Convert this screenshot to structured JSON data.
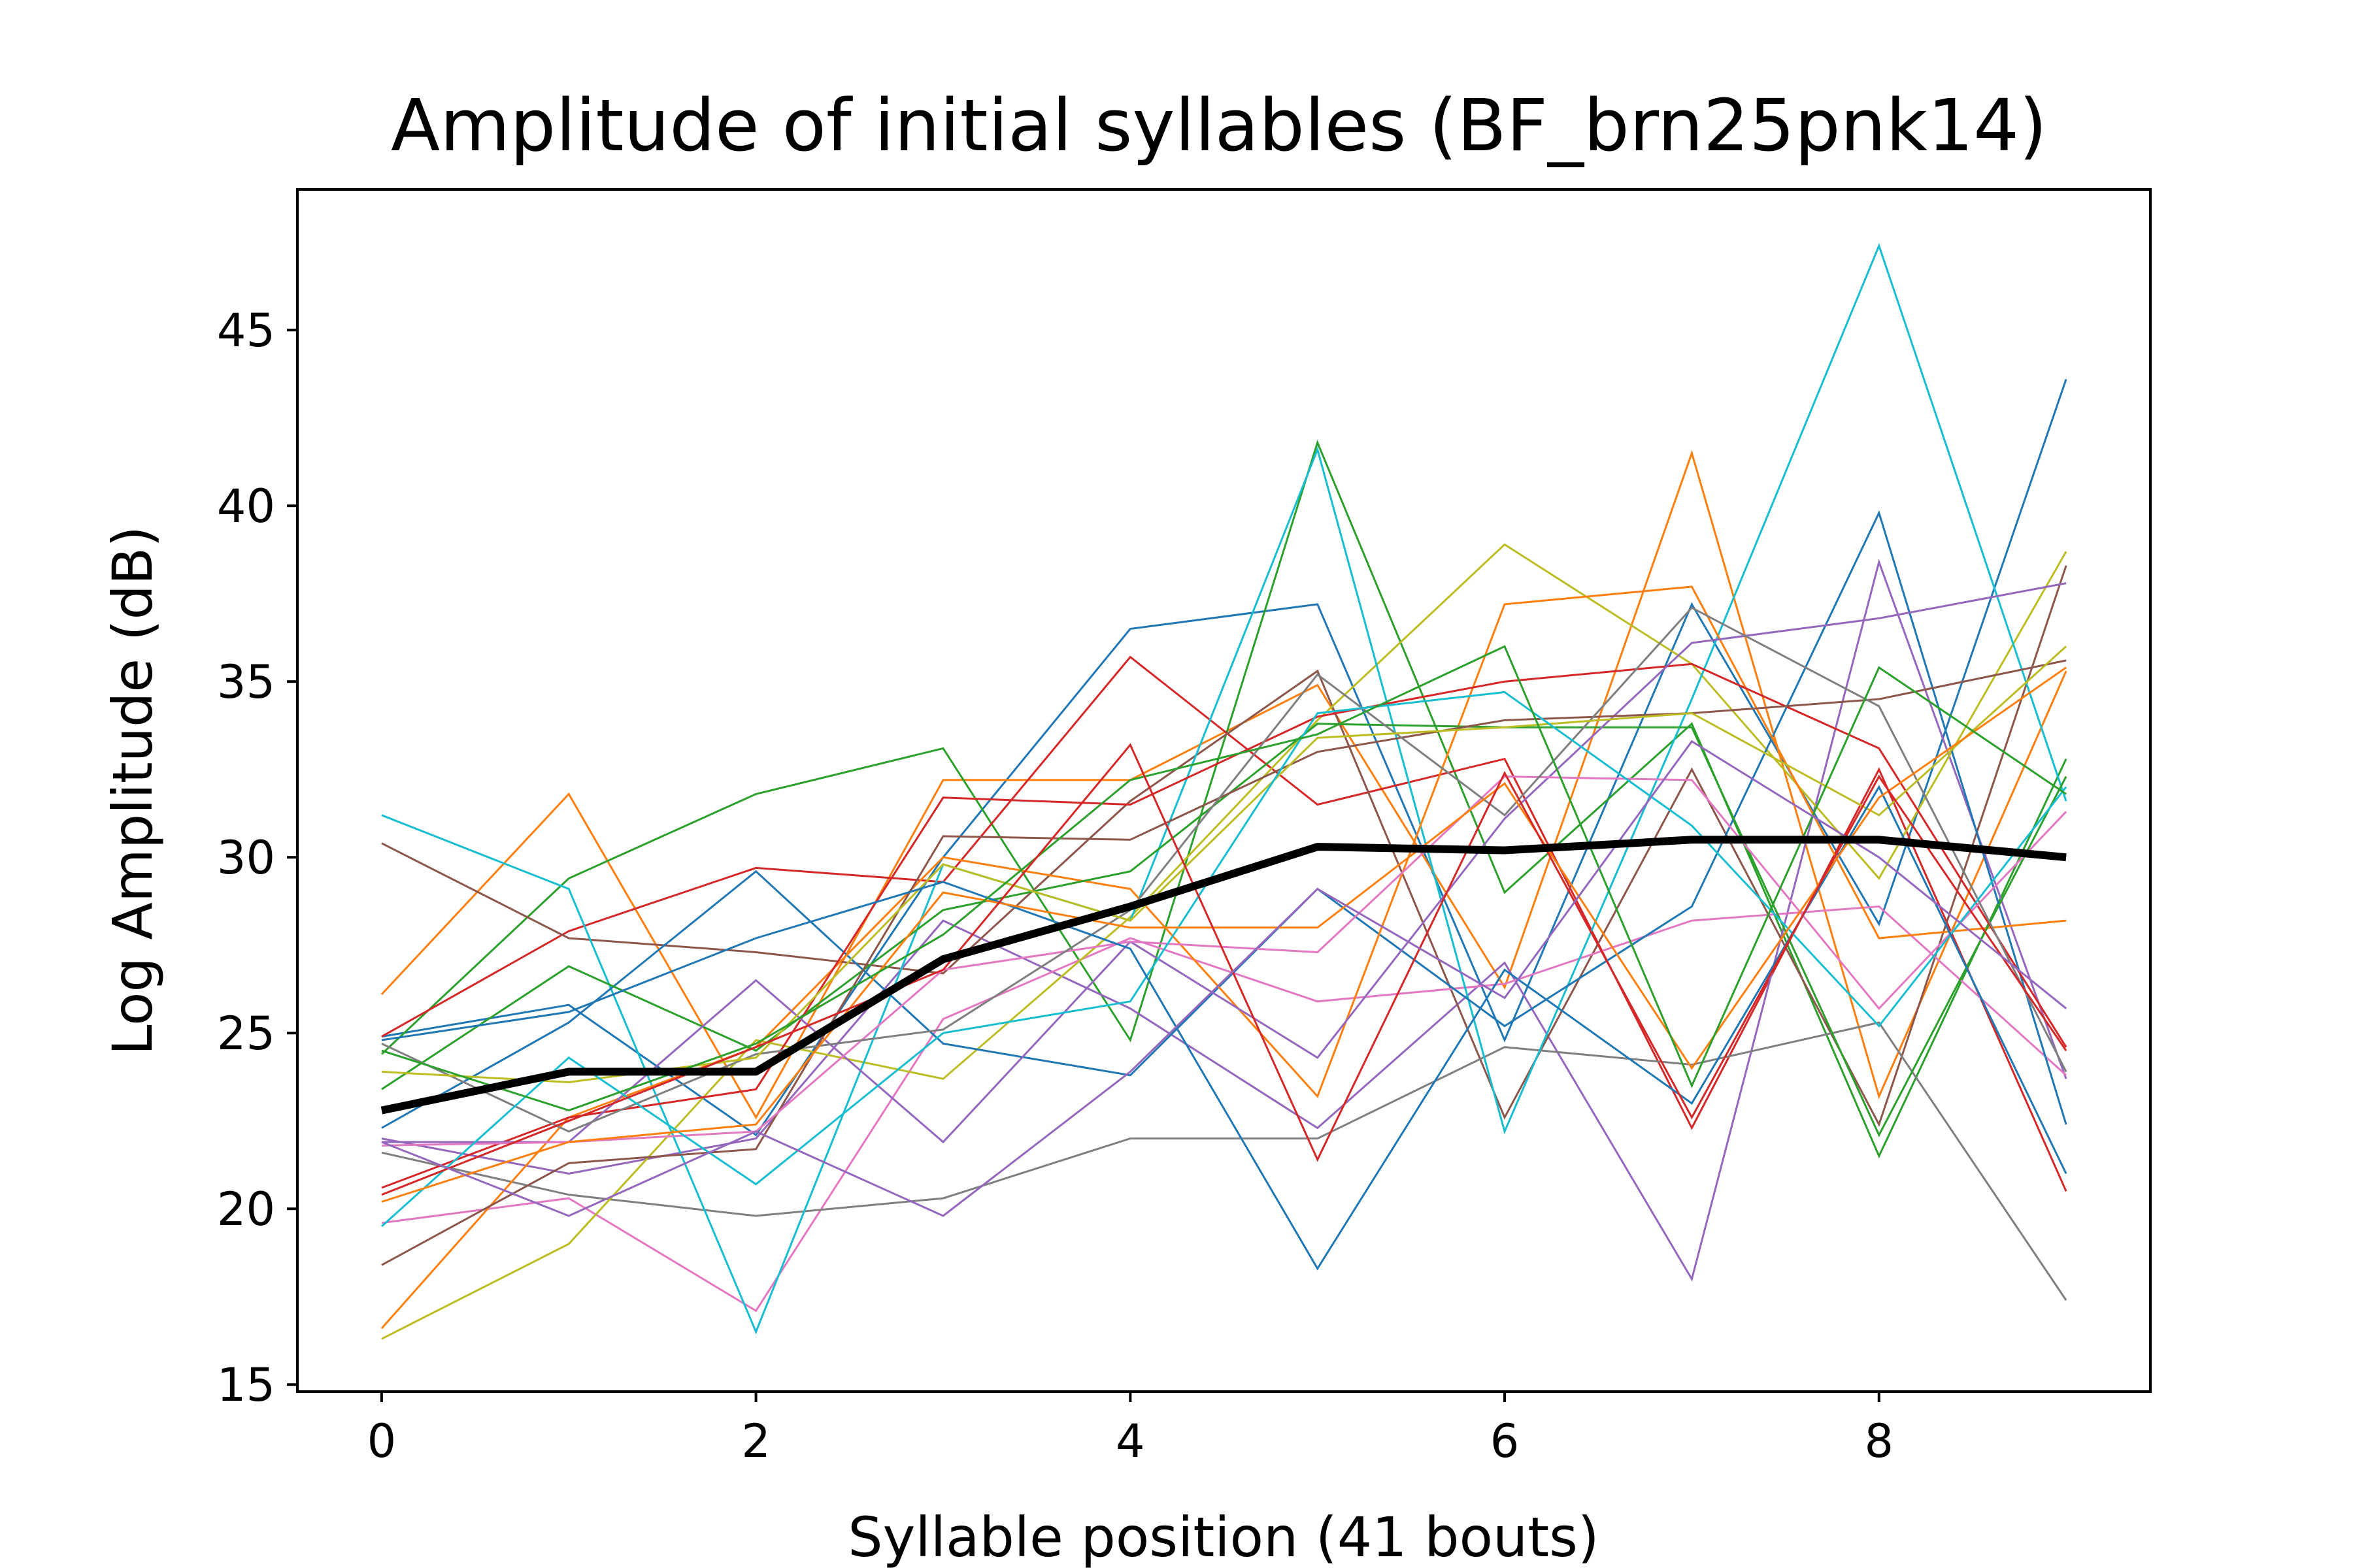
{
  "chart_data": {
    "type": "line",
    "title": "Amplitude of initial syllables (BF_brn25pnk14)",
    "xlabel": "Syllable position (41 bouts)",
    "ylabel": "Log Amplitude (dB)",
    "xlim": [
      -0.45,
      9.45
    ],
    "ylim": [
      14.8,
      49.0
    ],
    "xticks": [
      "0",
      "2",
      "4",
      "6",
      "8"
    ],
    "xtick_values": [
      0,
      2,
      4,
      6,
      8
    ],
    "yticks": [
      "15",
      "20",
      "25",
      "30",
      "35",
      "40",
      "45"
    ],
    "ytick_values": [
      15,
      20,
      25,
      30,
      35,
      40,
      45
    ],
    "grid": false,
    "x": [
      0,
      1,
      2,
      3,
      4,
      5,
      6,
      7,
      8,
      9
    ],
    "series": [
      {
        "color": "#1f77b4",
        "values": [
          24.9,
          25.8,
          22.1,
          30.0,
          36.5,
          37.2,
          24.8,
          37.2,
          28.1,
          43.6
        ]
      },
      {
        "color": "#ff7f0e",
        "values": [
          26.1,
          31.8,
          22.6,
          32.2,
          32.2,
          34.9,
          26.3,
          41.5,
          23.2,
          35.3
        ]
      },
      {
        "color": "#2ca02c",
        "values": [
          24.4,
          29.4,
          31.8,
          33.1,
          24.8,
          41.8,
          29.0,
          33.8,
          21.5,
          32.8
        ]
      },
      {
        "color": "#d62728",
        "values": [
          24.9,
          27.9,
          29.7,
          29.3,
          35.7,
          31.5,
          32.8,
          22.3,
          32.5,
          20.5
        ]
      },
      {
        "color": "#9467bd",
        "values": [
          22.0,
          21.0,
          22.0,
          28.2,
          25.7,
          22.3,
          27.0,
          18.0,
          38.4,
          23.7
        ]
      },
      {
        "color": "#8c564b",
        "values": [
          30.4,
          27.7,
          27.3,
          26.7,
          31.6,
          35.3,
          22.6,
          32.5,
          22.4,
          38.3
        ]
      },
      {
        "color": "#e377c2",
        "values": [
          19.6,
          20.3,
          17.1,
          25.4,
          27.7,
          25.9,
          26.4,
          28.2,
          28.6,
          23.8
        ]
      },
      {
        "color": "#7f7f7f",
        "values": [
          21.6,
          20.4,
          19.8,
          20.3,
          22.0,
          22.0,
          24.6,
          24.1,
          25.3,
          17.4
        ]
      },
      {
        "color": "#bcbd22",
        "values": [
          16.3,
          19.0,
          24.8,
          23.7,
          28.3,
          33.9,
          38.9,
          35.5,
          29.4,
          38.7
        ]
      },
      {
        "color": "#17becf",
        "values": [
          31.2,
          29.1,
          16.5,
          29.8,
          28.2,
          41.6,
          22.2,
          34.5,
          47.4,
          31.6
        ]
      },
      {
        "color": "#1f77b4",
        "values": [
          22.3,
          25.3,
          29.6,
          24.7,
          23.8,
          29.1,
          25.2,
          28.6,
          39.8,
          22.4
        ]
      },
      {
        "color": "#ff7f0e",
        "values": [
          16.6,
          22.6,
          24.6,
          30.0,
          29.1,
          23.2,
          37.2,
          37.7,
          27.7,
          28.2
        ]
      },
      {
        "color": "#2ca02c",
        "values": [
          23.4,
          26.9,
          24.5,
          28.5,
          29.6,
          33.8,
          33.7,
          33.7,
          22.1,
          32.3
        ]
      },
      {
        "color": "#d62728",
        "values": [
          20.6,
          22.6,
          23.4,
          31.7,
          31.5,
          34.0,
          35.0,
          35.5,
          33.1,
          24.6
        ]
      },
      {
        "color": "#9467bd",
        "values": [
          21.9,
          21.9,
          26.5,
          21.9,
          27.6,
          24.3,
          31.1,
          36.1,
          36.8,
          37.8
        ]
      },
      {
        "color": "#8c564b",
        "values": [
          18.4,
          21.3,
          21.7,
          30.6,
          30.5,
          33.0,
          33.9,
          34.1,
          34.5,
          35.6
        ]
      },
      {
        "color": "#e377c2",
        "values": [
          21.8,
          21.9,
          22.2,
          26.8,
          27.6,
          27.3,
          32.3,
          32.2,
          25.7,
          31.3
        ]
      },
      {
        "color": "#7f7f7f",
        "values": [
          24.7,
          22.2,
          24.4,
          25.1,
          28.5,
          35.2,
          31.2,
          37.1,
          34.3,
          23.9
        ]
      },
      {
        "color": "#bcbd22",
        "values": [
          23.9,
          23.6,
          24.3,
          29.8,
          28.2,
          33.4,
          33.7,
          34.1,
          31.2,
          36.0
        ]
      },
      {
        "color": "#17becf",
        "values": [
          19.5,
          24.3,
          20.7,
          25.0,
          25.9,
          34.1,
          34.7,
          30.9,
          25.2,
          32.0
        ]
      },
      {
        "color": "#1f77b4",
        "values": [
          24.8,
          25.6,
          27.7,
          29.3,
          27.4,
          18.3,
          26.8,
          23.0,
          32.0,
          21.0
        ]
      },
      {
        "color": "#ff7f0e",
        "values": [
          20.2,
          21.9,
          22.4,
          29.0,
          28.0,
          28.0,
          32.1,
          24.0,
          31.7,
          35.4
        ]
      },
      {
        "color": "#2ca02c",
        "values": [
          24.5,
          22.8,
          24.7,
          27.8,
          32.2,
          33.5,
          36.0,
          23.5,
          35.4,
          31.8
        ]
      },
      {
        "color": "#d62728",
        "values": [
          20.4,
          22.5,
          24.6,
          26.8,
          33.2,
          21.4,
          32.4,
          22.6,
          32.3,
          24.5
        ]
      },
      {
        "color": "#9467bd",
        "values": [
          21.9,
          19.8,
          22.2,
          19.8,
          23.9,
          29.1,
          26.0,
          33.3,
          30.0,
          25.7
        ]
      }
    ],
    "mean": {
      "color": "#000000",
      "values": [
        22.8,
        23.9,
        23.9,
        27.1,
        28.6,
        30.3,
        30.2,
        30.5,
        30.5,
        30.0
      ]
    }
  }
}
